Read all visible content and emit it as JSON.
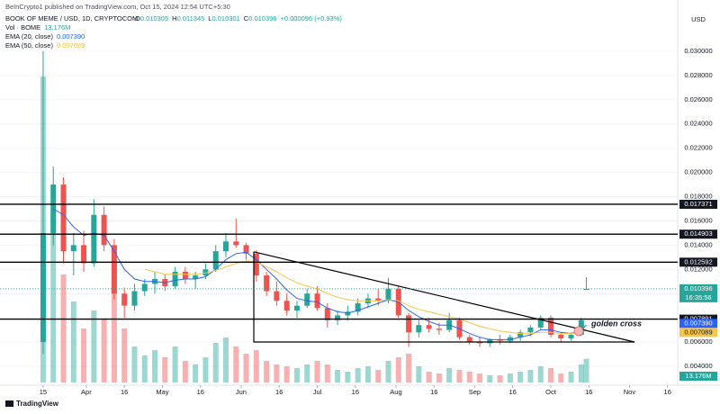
{
  "header": {
    "publisher": "BeInCrypto1 published on TradingView.com, Oct 15, 2024 12:54 UTC+5:30",
    "symbol": "BOOK OF MEME / USD, 1D, CRYPTOCOM",
    "ohlc_keys": [
      "O",
      "H",
      "L",
      "C"
    ],
    "change": "+0.000096 (+0.93%)",
    "brand": "TradingView"
  },
  "chart_data": {
    "type": "candlestick",
    "axis_unit": "USD",
    "x": [
      0,
      4,
      8,
      12,
      16,
      20,
      24,
      28,
      32,
      36,
      40,
      44,
      48,
      52,
      56,
      60,
      64,
      68,
      72,
      76,
      80,
      84,
      88,
      92,
      96,
      100,
      104,
      108,
      112,
      116,
      120,
      124,
      128,
      132,
      136,
      140,
      144,
      148,
      152,
      156,
      160,
      164,
      168,
      172,
      176,
      180,
      184,
      188,
      192,
      196,
      200,
      204,
      208,
      212,
      214
    ],
    "open": [
      0.006,
      0.015,
      0.019,
      0.0135,
      0.014,
      0.0125,
      0.0165,
      0.014,
      0.01,
      0.009,
      0.0102,
      0.0108,
      0.0112,
      0.0106,
      0.0118,
      0.0112,
      0.0115,
      0.012,
      0.0135,
      0.0143,
      0.014,
      0.0133,
      0.0115,
      0.0102,
      0.0094,
      0.0086,
      0.009,
      0.01,
      0.0088,
      0.0078,
      0.0082,
      0.0085,
      0.0092,
      0.0096,
      0.0094,
      0.0104,
      0.0082,
      0.0068,
      0.0074,
      0.0071,
      0.007,
      0.0078,
      0.0064,
      0.006,
      0.0059,
      0.0062,
      0.0061,
      0.0064,
      0.0068,
      0.0072,
      0.008,
      0.0066,
      0.0063,
      0.0066,
      0.010305
    ],
    "high": [
      0.03,
      0.0205,
      0.0196,
      0.015,
      0.0152,
      0.0178,
      0.0172,
      0.0145,
      0.0105,
      0.0108,
      0.0112,
      0.0118,
      0.0116,
      0.0122,
      0.0122,
      0.0118,
      0.0125,
      0.014,
      0.015,
      0.0162,
      0.0142,
      0.0136,
      0.0118,
      0.011,
      0.01,
      0.0094,
      0.0104,
      0.0106,
      0.0092,
      0.0086,
      0.009,
      0.0096,
      0.01,
      0.0104,
      0.0113,
      0.0106,
      0.0084,
      0.0078,
      0.008,
      0.0076,
      0.0084,
      0.008,
      0.0066,
      0.0064,
      0.0063,
      0.0066,
      0.0066,
      0.007,
      0.0074,
      0.0082,
      0.0082,
      0.0068,
      0.0068,
      0.008,
      0.011345
    ],
    "low": [
      0.005,
      0.014,
      0.0125,
      0.0115,
      0.0118,
      0.0122,
      0.0135,
      0.0095,
      0.008,
      0.0086,
      0.0098,
      0.01,
      0.0102,
      0.0104,
      0.0108,
      0.0104,
      0.0112,
      0.0118,
      0.013,
      0.0138,
      0.0128,
      0.011,
      0.0098,
      0.009,
      0.0082,
      0.008,
      0.0088,
      0.0086,
      0.0072,
      0.0074,
      0.0078,
      0.0082,
      0.0088,
      0.009,
      0.0092,
      0.008,
      0.0056,
      0.0064,
      0.0068,
      0.0066,
      0.0068,
      0.0062,
      0.0058,
      0.0056,
      0.0056,
      0.0058,
      0.0059,
      0.0061,
      0.0065,
      0.007,
      0.0064,
      0.006,
      0.0061,
      0.0065,
      0.010301
    ],
    "close": [
      0.015,
      0.019,
      0.0135,
      0.014,
      0.0125,
      0.0165,
      0.014,
      0.01,
      0.009,
      0.0102,
      0.0108,
      0.0112,
      0.0106,
      0.0118,
      0.0112,
      0.0115,
      0.012,
      0.0135,
      0.0143,
      0.014,
      0.0133,
      0.0115,
      0.0102,
      0.0094,
      0.0086,
      0.009,
      0.01,
      0.0088,
      0.0078,
      0.0082,
      0.0085,
      0.0092,
      0.0096,
      0.0094,
      0.0104,
      0.0082,
      0.0068,
      0.0074,
      0.0071,
      0.007,
      0.0078,
      0.0064,
      0.006,
      0.0059,
      0.0062,
      0.0061,
      0.0064,
      0.0068,
      0.0072,
      0.008,
      0.0066,
      0.0063,
      0.0066,
      0.0078,
      0.010396
    ],
    "up_color": "#26a69a",
    "down_color": "#ef5350",
    "volume_name": "Vol · BOME",
    "volume": [
      170,
      95,
      60,
      45,
      30,
      40,
      35,
      50,
      30,
      20,
      15,
      18,
      14,
      20,
      12,
      10,
      14,
      22,
      25,
      20,
      16,
      18,
      12,
      10,
      9,
      8,
      10,
      12,
      10,
      7,
      6,
      8,
      9,
      7,
      12,
      14,
      16,
      9,
      6,
      5,
      8,
      7,
      6,
      5,
      4,
      4,
      5,
      6,
      7,
      9,
      8,
      5,
      6,
      10,
      13.176
    ],
    "volume_label": {
      "value": 13.176,
      "label": "13.176M"
    },
    "ema": [
      {
        "name": "EMA (20, close)",
        "color": "#2962ff",
        "values": [
          null,
          0.017,
          0.0165,
          0.0155,
          0.0148,
          0.015,
          0.0148,
          0.0135,
          0.012,
          0.0112,
          0.011,
          0.011,
          0.0109,
          0.0111,
          0.0112,
          0.0112,
          0.0114,
          0.012,
          0.0128,
          0.0133,
          0.0134,
          0.0128,
          0.012,
          0.0112,
          0.0103,
          0.0096,
          0.0094,
          0.0093,
          0.0088,
          0.0085,
          0.0084,
          0.0086,
          0.0089,
          0.0092,
          0.0095,
          0.0093,
          0.0086,
          0.0081,
          0.0077,
          0.0074,
          0.0074,
          0.0071,
          0.0067,
          0.0064,
          0.0062,
          0.0062,
          0.0062,
          0.0064,
          0.0066,
          0.007,
          0.007,
          0.0068,
          0.0067,
          0.007,
          0.00739
        ]
      },
      {
        "name": "EMA (50, close)",
        "color": "#f7c548",
        "values": [
          null,
          null,
          null,
          null,
          null,
          null,
          null,
          null,
          null,
          null,
          0.012,
          0.0118,
          0.0116,
          0.0116,
          0.0116,
          0.0116,
          0.0117,
          0.0119,
          0.0122,
          0.0125,
          0.0127,
          0.0126,
          0.0122,
          0.0118,
          0.0113,
          0.0109,
          0.0106,
          0.0104,
          0.01,
          0.0097,
          0.0095,
          0.0094,
          0.0094,
          0.0094,
          0.0095,
          0.0094,
          0.009,
          0.0087,
          0.0085,
          0.0083,
          0.0081,
          0.0079,
          0.0076,
          0.0073,
          0.0071,
          0.0069,
          0.0068,
          0.0067,
          0.0067,
          0.0068,
          0.0068,
          0.0067,
          0.0067,
          0.0068,
          0.007089
        ]
      }
    ],
    "levels": [
      0.017371,
      0.014903,
      0.012592,
      0.007891
    ],
    "price_labels": [
      {
        "value": 0.010396,
        "label": "0.010396",
        "color": "#26a69a"
      },
      {
        "value": 0.00739,
        "label": "0.007390",
        "color": "#2962ff"
      },
      {
        "value": 0.007089,
        "label": "0.007089",
        "color": "#f7c548"
      }
    ],
    "countdown": "16:35:56",
    "triangle": {
      "x": [
        83,
        233,
        83,
        83
      ],
      "y": [
        0.01345,
        0.006,
        0.006,
        0.01345
      ]
    },
    "annotation": {
      "text": "golden cross",
      "x": 211,
      "y": 0.0069
    },
    "xlim": [
      -17,
      250
    ],
    "ylim": [
      0.00266,
      0.03312
    ],
    "xticks": [
      {
        "value": 0,
        "label": "15"
      },
      {
        "value": 17,
        "label": "Apr"
      },
      {
        "value": 32,
        "label": "16"
      },
      {
        "value": 47,
        "label": "May"
      },
      {
        "value": 62,
        "label": "16"
      },
      {
        "value": 78,
        "label": "Jun"
      },
      {
        "value": 93,
        "label": "16"
      },
      {
        "value": 108,
        "label": "Jul"
      },
      {
        "value": 123,
        "label": "16"
      },
      {
        "value": 139,
        "label": "Aug"
      },
      {
        "value": 154,
        "label": "16"
      },
      {
        "value": 170,
        "label": "Sep"
      },
      {
        "value": 185,
        "label": "16"
      },
      {
        "value": 200,
        "label": "Oct"
      },
      {
        "value": 215,
        "label": "16"
      },
      {
        "value": 231,
        "label": "Nov"
      },
      {
        "value": 246,
        "label": "16"
      }
    ],
    "yticks": [
      {
        "value": 0.004,
        "label": "0.004000"
      },
      {
        "value": 0.006,
        "label": "0.006000"
      },
      {
        "value": 0.008,
        "label": "0.008000"
      },
      {
        "value": 0.01,
        "label": "0.010000"
      },
      {
        "value": 0.012,
        "label": "0.012000"
      },
      {
        "value": 0.014,
        "label": "0.014000"
      },
      {
        "value": 0.016,
        "label": "0.016000"
      },
      {
        "value": 0.018,
        "label": "0.018000"
      },
      {
        "value": 0.02,
        "label": "0.020000"
      },
      {
        "value": 0.022,
        "label": "0.022000"
      },
      {
        "value": 0.024,
        "label": "0.024000"
      },
      {
        "value": 0.026,
        "label": "0.026000"
      },
      {
        "value": 0.028,
        "label": "0.028000"
      },
      {
        "value": 0.03,
        "label": "0.030000"
      }
    ]
  }
}
